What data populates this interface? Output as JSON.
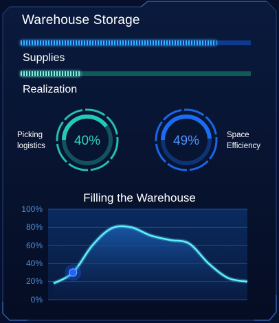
{
  "panel": {
    "title": "Warehouse Storage"
  },
  "progress_bars": [
    {
      "label": "Supplies",
      "fraction": 0.85,
      "color": "#35b6ff",
      "track_color": "#0d3a8f"
    },
    {
      "label": "Realization",
      "fraction": 0.26,
      "color": "#7ff2e3",
      "track_color": "#0f5a56"
    }
  ],
  "gauges": [
    {
      "name": "Picking logistics",
      "label_lines": [
        "Picking",
        "logistics"
      ],
      "value_text": "40%",
      "value": 40,
      "color": "#25c9b7",
      "text_color": "#2fd3be"
    },
    {
      "name": "Space Efficiency",
      "label_lines": [
        "Space",
        "Efficiency"
      ],
      "value_text": "49%",
      "value": 49,
      "color": "#1b6cf2",
      "text_color": "#4f92ff"
    }
  ],
  "chart_data": {
    "type": "area",
    "title": "Filling the Warehouse",
    "ylim": [
      0,
      100
    ],
    "yticks": [
      "0%",
      "20%",
      "40%",
      "60%",
      "80%",
      "100%"
    ],
    "grid": true,
    "line_color": "#5ff1ff",
    "marker_color": "#1c63ff",
    "series": [
      {
        "values": [
          18,
          30,
          60,
          79,
          80,
          71,
          66,
          62,
          40,
          24,
          20
        ]
      }
    ],
    "marker_index": 1
  }
}
